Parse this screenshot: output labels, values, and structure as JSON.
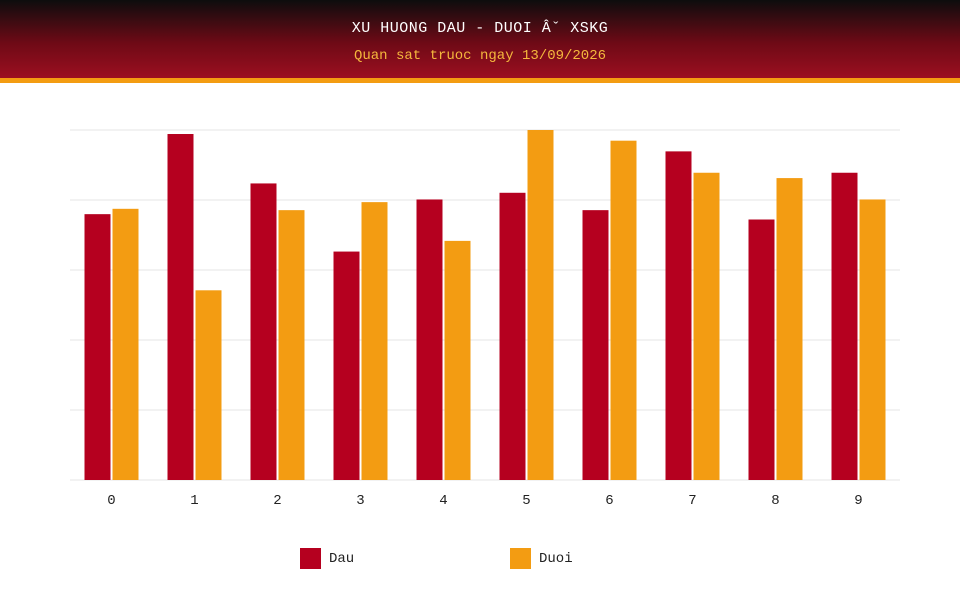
{
  "header": {
    "title": "XU HUONG DAU - DUOI Âˇ XSKG",
    "subtitle": "Quan sat truoc ngay 13/09/2026"
  },
  "colors": {
    "dau": "#b5001f",
    "duoi": "#f39c12",
    "grid": "#e6e6e6"
  },
  "chart_data": {
    "type": "bar",
    "title": "XU HUONG DAU - DUOI Âˇ XSKG",
    "subtitle": "Quan sat truoc ngay 13/09/2026",
    "categories": [
      "0",
      "1",
      "2",
      "3",
      "4",
      "5",
      "6",
      "7",
      "8",
      "9"
    ],
    "series": [
      {
        "name": "Dau",
        "values": [
          99.5,
          129.5,
          111,
          85.5,
          105,
          107.5,
          101,
          123,
          97.5,
          115
        ]
      },
      {
        "name": "Duoi",
        "values": [
          101.5,
          71,
          101,
          104,
          89.5,
          131,
          127,
          115,
          113,
          105
        ]
      }
    ],
    "ylim": [
      0,
      131
    ],
    "y_ticks_labeled": false,
    "grid": true,
    "legend_position": "bottom-center"
  }
}
